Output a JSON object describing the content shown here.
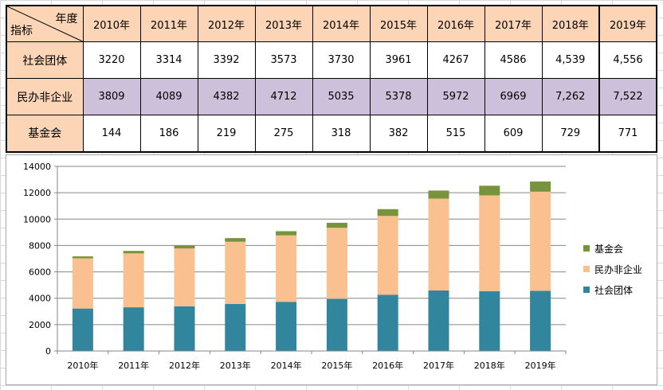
{
  "table": {
    "corner_col_label": "年度",
    "corner_row_label": "指标",
    "years": [
      "2010年",
      "2011年",
      "2012年",
      "2013年",
      "2014年",
      "2015年",
      "2016年",
      "2017年",
      "2018年",
      "2019年"
    ],
    "rows": [
      {
        "label": "社会团体",
        "cells": [
          "3220",
          "3314",
          "3392",
          "3573",
          "3730",
          "3961",
          "4267",
          "4586",
          "4,539",
          "4,556"
        ]
      },
      {
        "label": "民办非企业",
        "cells": [
          "3809",
          "4089",
          "4382",
          "4712",
          "5035",
          "5378",
          "5972",
          "6969",
          "7,262",
          "7,522"
        ]
      },
      {
        "label": "基金会",
        "cells": [
          "144",
          "186",
          "219",
          "275",
          "318",
          "382",
          "515",
          "609",
          "729",
          "771"
        ]
      }
    ]
  },
  "colors": {
    "header_bg": "#fbd5b5",
    "alt_row_bg": "#ccc0da",
    "series_social": "#31859c",
    "series_private": "#fac090",
    "series_foundation": "#77933c",
    "gridline": "#868686"
  },
  "chart_data": {
    "type": "bar",
    "stacked": true,
    "categories": [
      "2010年",
      "2011年",
      "2012年",
      "2013年",
      "2014年",
      "2015年",
      "2016年",
      "2017年",
      "2018年",
      "2019年"
    ],
    "series": [
      {
        "name": "社会团体",
        "color": "#31859c",
        "values": [
          3220,
          3314,
          3392,
          3573,
          3730,
          3961,
          4267,
          4586,
          4539,
          4556
        ]
      },
      {
        "name": "民办非企业",
        "color": "#fac090",
        "values": [
          3809,
          4089,
          4382,
          4712,
          5035,
          5378,
          5972,
          6969,
          7262,
          7522
        ]
      },
      {
        "name": "基金会",
        "color": "#77933c",
        "values": [
          144,
          186,
          219,
          275,
          318,
          382,
          515,
          609,
          729,
          771
        ]
      }
    ],
    "ylim": [
      0,
      14000
    ],
    "yticks": [
      "0",
      "2000",
      "4000",
      "6000",
      "8000",
      "10000",
      "12000",
      "14000"
    ],
    "grid": true,
    "legend_position": "right"
  }
}
